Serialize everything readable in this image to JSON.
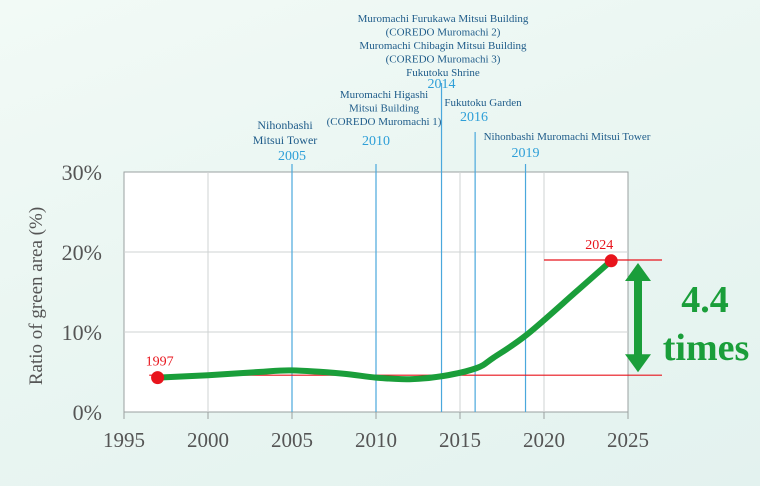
{
  "chart_data": {
    "type": "line",
    "ylabel": "Ratio of green area (%)",
    "xlim": [
      1995,
      2025
    ],
    "ylim": [
      0,
      30
    ],
    "x_ticks": [
      1995,
      2000,
      2005,
      2010,
      2015,
      2020,
      2025
    ],
    "y_ticks": [
      0,
      10,
      20,
      30
    ],
    "y_tick_labels": [
      "0%",
      "10%",
      "20%",
      "30%"
    ],
    "grid": true,
    "series": [
      {
        "color": "#1a9e3a",
        "x": [
          1997,
          2000,
          2003,
          2005,
          2008,
          2010,
          2012,
          2014,
          2016,
          2017,
          2019,
          2022,
          2024
        ],
        "y": [
          4.3,
          4.6,
          5.0,
          5.2,
          4.8,
          4.3,
          4.1,
          4.5,
          5.5,
          6.8,
          9.7,
          15.2,
          18.9
        ]
      }
    ],
    "points": [
      {
        "label": "1997",
        "x": 1997,
        "y": 4.3,
        "color": "#e8141c"
      },
      {
        "label": "2024",
        "x": 2024,
        "y": 18.9,
        "color": "#e8141c"
      }
    ],
    "reference_lines": [
      {
        "y": 4.6,
        "color": "#e8141c"
      },
      {
        "y": 19.0,
        "color": "#e8141c"
      }
    ],
    "annotations": [
      {
        "year": "2005",
        "x": 2005,
        "lines": [
          "Nihonbashi",
          "Mitsui Tower"
        ]
      },
      {
        "year": "2010",
        "x": 2010,
        "lines": [
          "Muromachi Higashi",
          "Mitsui Building",
          "(COREDO Muromachi 1)"
        ]
      },
      {
        "year": "2014",
        "x": 2013.9,
        "lines": [
          "Muromachi Furukawa Mitsui Building",
          "(COREDO Muromachi 2)",
          "Muromachi Chibagin Mitsui Building",
          "(COREDO Muromachi 3)",
          "Fukutoku Shrine"
        ]
      },
      {
        "year": "2016",
        "x": 2015.9,
        "lines": [
          "Fukutoku Garden"
        ]
      },
      {
        "year": "2019",
        "x": 2018.9,
        "lines": [
          "Nihonbashi Muromachi Mitsui Tower"
        ]
      }
    ],
    "callout": {
      "lines": [
        "4.4",
        "times"
      ],
      "color": "#1a9e3a"
    },
    "colors": {
      "annotation_year": "#2e9fd8",
      "annotation_text": "#1f5c8a",
      "event_line": "#4aa8dc"
    }
  }
}
